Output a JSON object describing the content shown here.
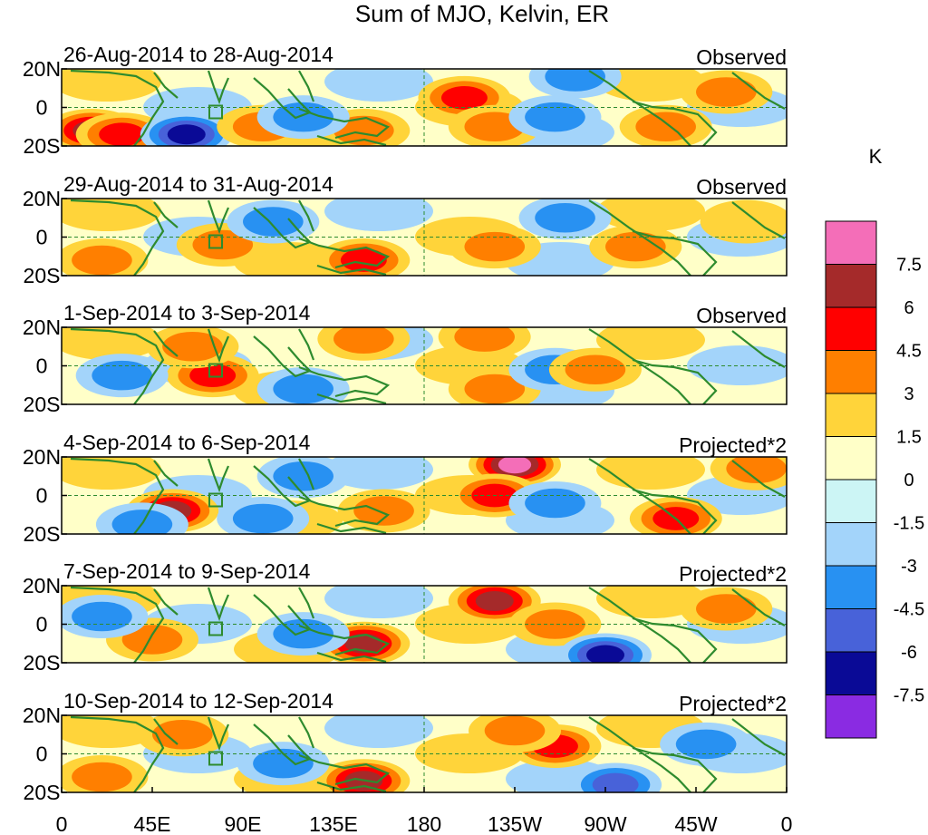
{
  "chart_data": {
    "type": "heatmap",
    "title": "Sum of MJO, Kelvin, ER",
    "xlabel": "",
    "ylabel": "",
    "x_ticks": [
      "0",
      "45E",
      "90E",
      "135E",
      "180",
      "135W",
      "90W",
      "45W",
      "0"
    ],
    "y_ticks": [
      "20N",
      "0",
      "20S"
    ],
    "xlim": [
      0,
      360
    ],
    "ylim": [
      -20,
      20
    ],
    "colorbar": {
      "unit": "K",
      "labels": [
        "7.5",
        "6",
        "4.5",
        "3",
        "1.5",
        "0",
        "-1.5",
        "-3",
        "-4.5",
        "-6",
        "-7.5"
      ],
      "colors": [
        "#f46eb8",
        "#a52a2a",
        "#ff0000",
        "#ff7f00",
        "#ffd43a",
        "#ffffc8",
        "#ccf5f5",
        "#a3d4fa",
        "#2891f2",
        "#4862d9",
        "#0a0a96",
        "#8a2be2"
      ]
    },
    "panels": [
      {
        "period": "26-Aug-2014 to 28-Aug-2014",
        "status": "Observed",
        "blobs": [
          {
            "lon": 15,
            "lat": -12,
            "v": 6
          },
          {
            "lon": 30,
            "lat": -14,
            "v": 5
          },
          {
            "lon": 62,
            "lat": -14,
            "v": -7
          },
          {
            "lon": 100,
            "lat": -10,
            "v": 4
          },
          {
            "lon": 150,
            "lat": -12,
            "v": 3
          },
          {
            "lon": 200,
            "lat": 5,
            "v": 5
          },
          {
            "lon": 215,
            "lat": -10,
            "v": 4
          },
          {
            "lon": 255,
            "lat": 16,
            "v": -4
          },
          {
            "lon": 245,
            "lat": -5,
            "v": -3
          },
          {
            "lon": 330,
            "lat": 8,
            "v": 4
          },
          {
            "lon": 300,
            "lat": -10,
            "v": 4
          },
          {
            "lon": 120,
            "lat": -5,
            "v": -3
          }
        ]
      },
      {
        "period": "29-Aug-2014 to 31-Aug-2014",
        "status": "Observed",
        "blobs": [
          {
            "lon": 20,
            "lat": -12,
            "v": 4
          },
          {
            "lon": 80,
            "lat": -4,
            "v": 3
          },
          {
            "lon": 150,
            "lat": -12,
            "v": 5
          },
          {
            "lon": 215,
            "lat": -5,
            "v": 3
          },
          {
            "lon": 105,
            "lat": 8,
            "v": -3
          },
          {
            "lon": 250,
            "lat": 10,
            "v": -3
          },
          {
            "lon": 285,
            "lat": -5,
            "v": 3
          },
          {
            "lon": 340,
            "lat": 8,
            "v": 2
          }
        ]
      },
      {
        "period": "1-Sep-2014 to 3-Sep-2014",
        "status": "Observed",
        "blobs": [
          {
            "lon": 75,
            "lat": -5,
            "v": 5
          },
          {
            "lon": 65,
            "lat": 10,
            "v": 3
          },
          {
            "lon": 150,
            "lat": 14,
            "v": 3
          },
          {
            "lon": 210,
            "lat": 15,
            "v": 4
          },
          {
            "lon": 215,
            "lat": -12,
            "v": 4
          },
          {
            "lon": 245,
            "lat": -2,
            "v": -4
          },
          {
            "lon": 265,
            "lat": -2,
            "v": 3
          },
          {
            "lon": 120,
            "lat": -12,
            "v": -3
          },
          {
            "lon": 30,
            "lat": -5,
            "v": -3
          }
        ]
      },
      {
        "period": "4-Sep-2014 to 6-Sep-2014",
        "status": "Projected*2",
        "blobs": [
          {
            "lon": 55,
            "lat": -8,
            "v": 6
          },
          {
            "lon": 40,
            "lat": -15,
            "v": -4
          },
          {
            "lon": 225,
            "lat": 16,
            "v": 8
          },
          {
            "lon": 215,
            "lat": 0,
            "v": 5
          },
          {
            "lon": 245,
            "lat": -4,
            "v": -4
          },
          {
            "lon": 305,
            "lat": -12,
            "v": 5
          },
          {
            "lon": 345,
            "lat": 14,
            "v": 4
          },
          {
            "lon": 100,
            "lat": -12,
            "v": -3
          },
          {
            "lon": 160,
            "lat": -8,
            "v": 3
          },
          {
            "lon": 120,
            "lat": 10,
            "v": -3
          }
        ]
      },
      {
        "period": "7-Sep-2014 to 9-Sep-2014",
        "status": "Projected*2",
        "blobs": [
          {
            "lon": 45,
            "lat": -8,
            "v": 4
          },
          {
            "lon": 150,
            "lat": -10,
            "v": 6
          },
          {
            "lon": 215,
            "lat": 12,
            "v": 6
          },
          {
            "lon": 245,
            "lat": 0,
            "v": 4
          },
          {
            "lon": 270,
            "lat": -16,
            "v": -7
          },
          {
            "lon": 120,
            "lat": -5,
            "v": -4
          },
          {
            "lon": 20,
            "lat": 4,
            "v": -3
          },
          {
            "lon": 330,
            "lat": 8,
            "v": 3
          }
        ]
      },
      {
        "period": "10-Sep-2014 to 12-Sep-2014",
        "status": "Projected*2",
        "blobs": [
          {
            "lon": 150,
            "lat": -14,
            "v": 6
          },
          {
            "lon": 245,
            "lat": 4,
            "v": 5
          },
          {
            "lon": 225,
            "lat": 12,
            "v": 3
          },
          {
            "lon": 275,
            "lat": -16,
            "v": -5
          },
          {
            "lon": 320,
            "lat": 5,
            "v": -3
          },
          {
            "lon": 110,
            "lat": -5,
            "v": -3
          },
          {
            "lon": 60,
            "lat": 10,
            "v": 3
          },
          {
            "lon": 20,
            "lat": -12,
            "v": 4
          }
        ]
      }
    ]
  }
}
